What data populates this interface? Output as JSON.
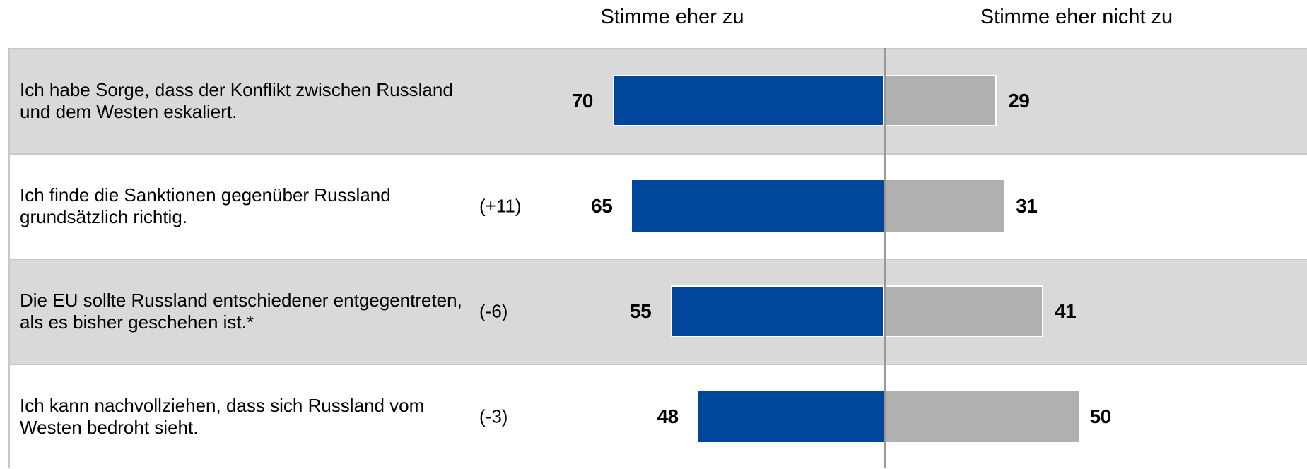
{
  "chart_data": {
    "type": "diverging-bar",
    "categories": [
      "Ich habe Sorge, dass der Konflikt zwischen Russland und dem Westen eskaliert.",
      "Ich finde die Sanktionen gegenüber Russland grundsätzlich richtig.",
      "Die EU sollte Russland entschiedener entgegentreten, als es bisher geschehen ist.*",
      "Ich kann nachvollziehen, dass sich Russland vom Westen bedroht sieht."
    ],
    "changes": [
      null,
      "(+11)",
      "(-6)",
      "(-3)"
    ],
    "series": [
      {
        "name": "Stimme eher zu",
        "color": "#00479b",
        "values": [
          70,
          65,
          55,
          48
        ]
      },
      {
        "name": "Stimme eher nicht zu",
        "color": "#b0b0b0",
        "values": [
          29,
          31,
          41,
          50
        ]
      }
    ]
  }
}
